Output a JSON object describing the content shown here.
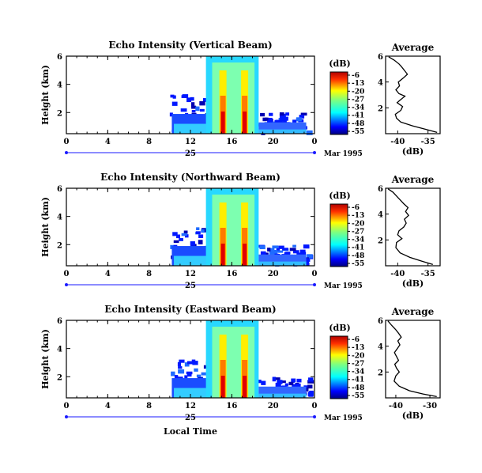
{
  "figure": {
    "xlabel": "Local Time",
    "date_label": "Mar 1995"
  },
  "chart_data": [
    {
      "type": "heatmap",
      "title": "Echo Intensity (Vertical Beam)",
      "ylabel": "Height (km)",
      "x_ticks": [
        "0",
        "4",
        "8",
        "12",
        "16",
        "20",
        "0"
      ],
      "y_ticks": [
        "2",
        "4",
        "6"
      ],
      "day_label": "25",
      "xlim": [
        0,
        24
      ],
      "ylim": [
        0.5,
        6
      ],
      "colorbar": {
        "title": "(dB)",
        "labels": [
          "-6",
          "-13",
          "-20",
          "-27",
          "-34",
          "-41",
          "-48",
          "-55"
        ]
      },
      "profile": {
        "title": "Average",
        "xlabel": "(dB)",
        "x_ticks": [
          "-40",
          "-35"
        ],
        "y_ticks": [
          "2",
          "4",
          "6"
        ],
        "xlim": [
          -42,
          -33
        ],
        "ylim": [
          0,
          6
        ],
        "points": [
          [
            -33.5,
            0.1
          ],
          [
            -35.5,
            0.35
          ],
          [
            -37.5,
            0.6
          ],
          [
            -39.5,
            0.9
          ],
          [
            -40.2,
            1.2
          ],
          [
            -40.4,
            1.5
          ],
          [
            -39.5,
            1.8
          ],
          [
            -39.2,
            2.1
          ],
          [
            -40.1,
            2.4
          ],
          [
            -39.6,
            2.6
          ],
          [
            -38.8,
            2.9
          ],
          [
            -39.8,
            3.1
          ],
          [
            -40.3,
            3.4
          ],
          [
            -39.7,
            3.7
          ],
          [
            -39.9,
            4.0
          ],
          [
            -39.1,
            4.3
          ],
          [
            -38.4,
            4.6
          ],
          [
            -38.9,
            4.9
          ],
          [
            -39.4,
            5.2
          ],
          [
            -39.8,
            5.4
          ],
          [
            -40.6,
            5.7
          ],
          [
            -41.5,
            5.95
          ]
        ]
      }
    },
    {
      "type": "heatmap",
      "title": "Echo Intensity (Northward Beam)",
      "ylabel": "Height (km)",
      "x_ticks": [
        "0",
        "4",
        "8",
        "12",
        "16",
        "20",
        "0"
      ],
      "y_ticks": [
        "2",
        "4",
        "6"
      ],
      "day_label": "25",
      "xlim": [
        0,
        24
      ],
      "ylim": [
        0.5,
        6
      ],
      "colorbar": {
        "title": "(dB)",
        "labels": [
          "-6",
          "-13",
          "-20",
          "-27",
          "-34",
          "-41",
          "-48",
          "-55"
        ]
      },
      "profile": {
        "title": "Average",
        "xlabel": "(dB)",
        "x_ticks": [
          "-40",
          "-35"
        ],
        "y_ticks": [
          "2",
          "4",
          "6"
        ],
        "xlim": [
          -42,
          -33
        ],
        "ylim": [
          0,
          6
        ],
        "points": [
          [
            -34.2,
            0.1
          ],
          [
            -36.0,
            0.35
          ],
          [
            -38.0,
            0.65
          ],
          [
            -39.6,
            1.0
          ],
          [
            -40.3,
            1.4
          ],
          [
            -40.2,
            1.8
          ],
          [
            -39.3,
            2.1
          ],
          [
            -40.0,
            2.4
          ],
          [
            -39.8,
            2.7
          ],
          [
            -39.0,
            3.0
          ],
          [
            -38.6,
            3.3
          ],
          [
            -38.9,
            3.6
          ],
          [
            -38.2,
            3.9
          ],
          [
            -38.7,
            4.2
          ],
          [
            -38.3,
            4.5
          ],
          [
            -39.0,
            4.8
          ],
          [
            -39.6,
            5.1
          ],
          [
            -40.2,
            5.4
          ],
          [
            -40.8,
            5.7
          ],
          [
            -41.6,
            5.95
          ]
        ]
      }
    },
    {
      "type": "heatmap",
      "title": "Echo Intensity (Eastward Beam)",
      "ylabel": "Height (km)",
      "x_ticks": [
        "0",
        "4",
        "8",
        "12",
        "16",
        "20",
        "0"
      ],
      "y_ticks": [
        "2",
        "4",
        "6"
      ],
      "day_label": "25",
      "xlim": [
        0,
        24
      ],
      "ylim": [
        0.5,
        6
      ],
      "colorbar": {
        "title": "(dB)",
        "labels": [
          "-6",
          "-13",
          "-20",
          "-27",
          "-34",
          "-41",
          "-48",
          "-55"
        ]
      },
      "profile": {
        "title": "Average",
        "xlabel": "(dB)",
        "x_ticks": [
          "-40",
          "-30"
        ],
        "y_ticks": [
          "2",
          "4",
          "6"
        ],
        "xlim": [
          -43,
          -27
        ],
        "ylim": [
          0,
          6
        ],
        "points": [
          [
            -28.0,
            0.1
          ],
          [
            -32.0,
            0.3
          ],
          [
            -36.0,
            0.55
          ],
          [
            -39.0,
            0.9
          ],
          [
            -40.5,
            1.3
          ],
          [
            -40.0,
            1.7
          ],
          [
            -39.0,
            2.0
          ],
          [
            -39.8,
            2.3
          ],
          [
            -40.3,
            2.6
          ],
          [
            -39.2,
            2.9
          ],
          [
            -39.8,
            3.2
          ],
          [
            -40.4,
            3.5
          ],
          [
            -39.6,
            3.8
          ],
          [
            -38.8,
            4.1
          ],
          [
            -39.4,
            4.4
          ],
          [
            -38.4,
            4.7
          ],
          [
            -39.2,
            5.0
          ],
          [
            -40.1,
            5.3
          ],
          [
            -41.2,
            5.6
          ],
          [
            -42.3,
            5.95
          ]
        ]
      }
    }
  ]
}
